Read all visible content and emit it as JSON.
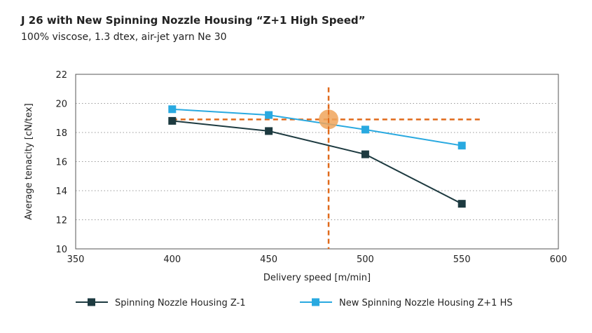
{
  "header": {
    "title": "J 26 with New Spinning Nozzle Housing “Z+1 High Speed”",
    "subtitle": "100% viscose, 1.3 dtex, air-jet yarn Ne 30"
  },
  "chart_data": {
    "type": "line",
    "xlabel": "Delivery speed [m/min]",
    "ylabel": "Average tenacity [cN/tex]",
    "xlim": [
      350,
      600
    ],
    "ylim": [
      10,
      22
    ],
    "xticks": [
      350,
      400,
      450,
      500,
      550,
      600
    ],
    "yticks": [
      10,
      12,
      14,
      16,
      18,
      20,
      22
    ],
    "grid": "dotted",
    "legend_position": "bottom",
    "series": [
      {
        "name": "Spinning Nozzle Housing Z-1",
        "color": "#1d3a40",
        "marker": "square",
        "x": [
          400,
          450,
          500,
          550
        ],
        "y": [
          18.8,
          18.1,
          16.5,
          13.1
        ]
      },
      {
        "name": "New Spinning Nozzle Housing Z+1 HS",
        "color": "#29a9e0",
        "marker": "square",
        "x": [
          400,
          450,
          500,
          550
        ],
        "y": [
          19.6,
          19.2,
          18.2,
          17.1
        ]
      }
    ],
    "annotations": {
      "color": "#e06a1b",
      "highlight_color": "#f0a55a",
      "reference_x": 481,
      "reference_y": 18.9,
      "hline_x_range": [
        400,
        560
      ],
      "vline_y_range": [
        10,
        21.1
      ]
    }
  }
}
